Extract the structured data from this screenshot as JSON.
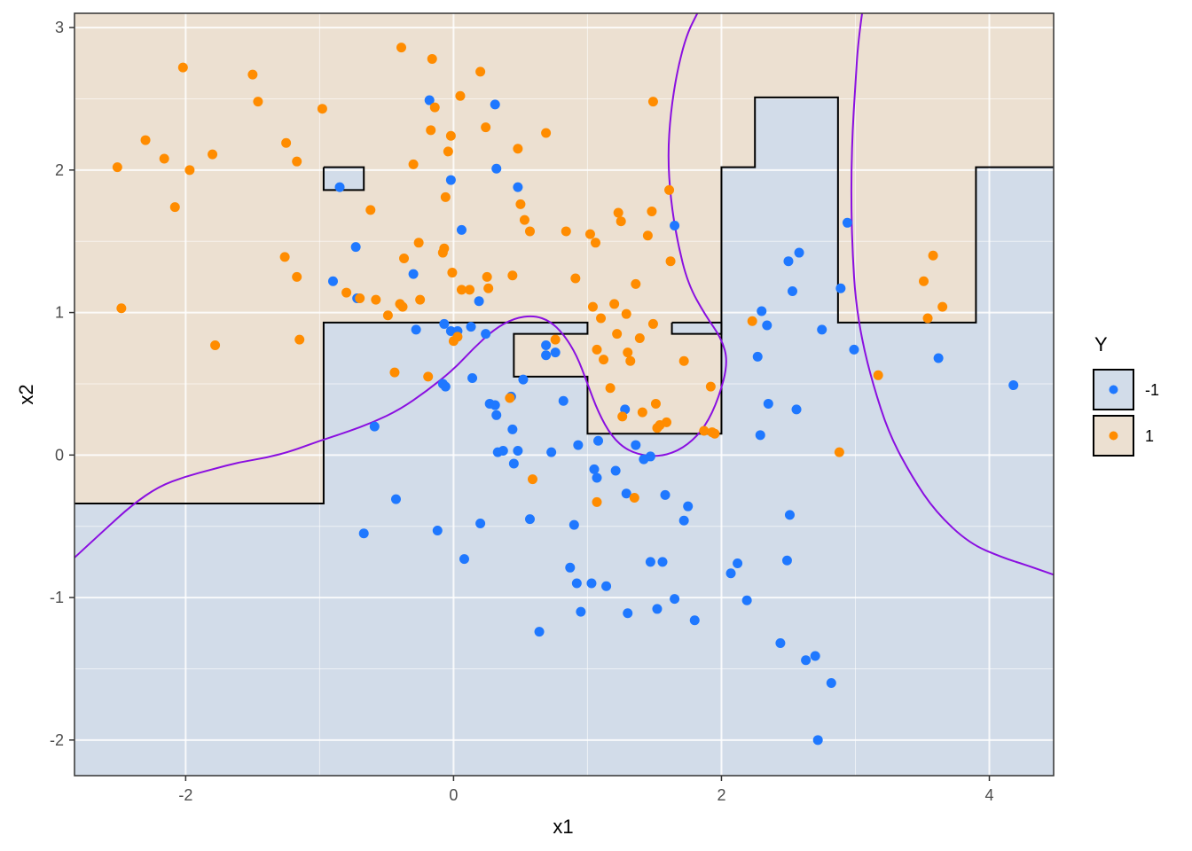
{
  "chart_data": {
    "type": "scatter",
    "xlabel": "x1",
    "ylabel": "x2",
    "xlim": [
      -2.83,
      4.48
    ],
    "ylim": [
      -2.25,
      3.1
    ],
    "x_ticks": [
      -2,
      0,
      2,
      4
    ],
    "y_ticks": [
      -2,
      -1,
      0,
      1,
      2,
      3
    ],
    "x_tick_labels": [
      "-2",
      "0",
      "2",
      "4"
    ],
    "y_tick_labels": [
      "-2",
      "-1",
      "0",
      "1",
      "2",
      "3"
    ],
    "grid": true,
    "legend": {
      "title": "Y",
      "position": "right",
      "items": [
        {
          "label": "-1",
          "point_color": "#1f78ff",
          "fill": "#d2dce9"
        },
        {
          "label": "1",
          "point_color": "#ff8c00",
          "fill": "#ece0d1"
        }
      ]
    },
    "colors": {
      "region_pos": "#ece0d1",
      "region_neg": "#d2dce9",
      "point_neg": "#1f78ff",
      "point_pos": "#ff8c00",
      "boundary_step": "#000000",
      "boundary_smooth": "#8a0fe0",
      "grid_major": "#ffffff"
    },
    "regions_positive": [
      [
        [
          -2.83,
          3.1
        ],
        [
          4.48,
          3.1
        ],
        [
          4.48,
          2.02
        ],
        [
          3.9,
          2.02
        ],
        [
          3.9,
          0.93
        ],
        [
          2.87,
          0.93
        ],
        [
          2.87,
          2.51
        ],
        [
          2.25,
          2.51
        ],
        [
          2.25,
          2.02
        ],
        [
          2.0,
          2.02
        ],
        [
          2.0,
          0.15
        ],
        [
          1.0,
          0.15
        ],
        [
          1.0,
          0.55
        ],
        [
          0.45,
          0.55
        ],
        [
          0.45,
          0.85
        ],
        [
          1.0,
          0.85
        ],
        [
          1.0,
          0.93
        ],
        [
          -0.97,
          0.93
        ],
        [
          -0.97,
          -0.34
        ],
        [
          -2.83,
          -0.34
        ]
      ]
    ],
    "regions_negative": [
      [
        [
          -0.97,
          2.02
        ],
        [
          -0.67,
          2.02
        ],
        [
          -0.67,
          1.86
        ],
        [
          -0.97,
          1.86
        ]
      ],
      [
        [
          1.63,
          0.93
        ],
        [
          2.0,
          0.93
        ],
        [
          2.0,
          0.85
        ],
        [
          1.63,
          0.85
        ]
      ]
    ],
    "step_boundary": [
      [
        [
          -2.83,
          -0.34
        ],
        [
          -0.97,
          -0.34
        ],
        [
          -0.97,
          0.93
        ],
        [
          1.0,
          0.93
        ],
        [
          1.0,
          0.85
        ],
        [
          0.45,
          0.85
        ],
        [
          0.45,
          0.55
        ],
        [
          1.0,
          0.55
        ],
        [
          1.0,
          0.15
        ],
        [
          2.0,
          0.15
        ],
        [
          2.0,
          2.02
        ],
        [
          2.25,
          2.02
        ],
        [
          2.25,
          2.51
        ],
        [
          2.87,
          2.51
        ],
        [
          2.87,
          0.93
        ],
        [
          3.9,
          0.93
        ],
        [
          3.9,
          2.02
        ],
        [
          4.48,
          2.02
        ]
      ],
      [
        [
          -0.97,
          2.02
        ],
        [
          -0.67,
          2.02
        ],
        [
          -0.67,
          1.86
        ],
        [
          -0.97,
          1.86
        ],
        [
          -0.97,
          2.02
        ]
      ],
      [
        [
          1.63,
          0.93
        ],
        [
          2.0,
          0.93
        ],
        [
          2.0,
          0.85
        ],
        [
          1.63,
          0.85
        ],
        [
          1.63,
          0.93
        ]
      ]
    ],
    "smooth_boundary": [
      [
        [
          -2.83,
          -0.72
        ],
        [
          -2.6,
          -0.52
        ],
        [
          -2.4,
          -0.35
        ],
        [
          -2.2,
          -0.22
        ],
        [
          -2.0,
          -0.15
        ],
        [
          -1.8,
          -0.1
        ],
        [
          -1.6,
          -0.05
        ],
        [
          -1.4,
          -0.02
        ],
        [
          -1.2,
          0.03
        ],
        [
          -1.0,
          0.1
        ],
        [
          -0.8,
          0.16
        ],
        [
          -0.6,
          0.23
        ],
        [
          -0.4,
          0.32
        ],
        [
          -0.2,
          0.45
        ],
        [
          0.0,
          0.6
        ],
        [
          0.15,
          0.75
        ],
        [
          0.3,
          0.88
        ],
        [
          0.45,
          0.96
        ],
        [
          0.6,
          0.98
        ],
        [
          0.72,
          0.94
        ],
        [
          0.82,
          0.85
        ],
        [
          0.92,
          0.7
        ],
        [
          1.0,
          0.5
        ],
        [
          1.08,
          0.3
        ],
        [
          1.18,
          0.13
        ],
        [
          1.3,
          0.03
        ],
        [
          1.45,
          -0.01
        ],
        [
          1.6,
          0.0
        ],
        [
          1.75,
          0.07
        ],
        [
          1.88,
          0.2
        ],
        [
          1.98,
          0.4
        ],
        [
          2.05,
          0.65
        ],
        [
          2.0,
          0.82
        ],
        [
          1.88,
          0.98
        ],
        [
          1.75,
          1.2
        ],
        [
          1.67,
          1.5
        ],
        [
          1.62,
          1.8
        ],
        [
          1.6,
          2.1
        ],
        [
          1.62,
          2.4
        ],
        [
          1.67,
          2.7
        ],
        [
          1.74,
          2.95
        ],
        [
          1.82,
          3.1
        ]
      ],
      [
        [
          3.05,
          3.1
        ],
        [
          3.02,
          2.9
        ],
        [
          3.0,
          2.6
        ],
        [
          2.98,
          2.3
        ],
        [
          2.97,
          2.0
        ],
        [
          2.97,
          1.7
        ],
        [
          2.98,
          1.4
        ],
        [
          3.0,
          1.1
        ],
        [
          3.05,
          0.8
        ],
        [
          3.13,
          0.5
        ],
        [
          3.25,
          0.15
        ],
        [
          3.42,
          -0.15
        ],
        [
          3.6,
          -0.4
        ],
        [
          3.85,
          -0.62
        ],
        [
          4.1,
          -0.72
        ],
        [
          4.3,
          -0.78
        ],
        [
          4.48,
          -0.84
        ]
      ]
    ],
    "series": [
      {
        "name": "-1",
        "x": [
          -0.85,
          -0.73,
          -0.9,
          -0.72,
          -0.3,
          -0.28,
          -0.59,
          -0.43,
          -0.67,
          -0.12,
          -0.08,
          -0.06,
          -0.02,
          -0.07,
          -0.18,
          -0.02,
          0.06,
          0.08,
          0.13,
          0.14,
          0.2,
          0.24,
          0.27,
          0.31,
          0.32,
          0.33,
          0.37,
          0.32,
          0.43,
          0.44,
          0.45,
          0.48,
          0.52,
          0.57,
          0.64,
          0.69,
          0.69,
          0.73,
          0.76,
          0.82,
          0.87,
          0.9,
          0.92,
          0.93,
          0.95,
          1.03,
          1.05,
          1.07,
          1.08,
          1.14,
          1.21,
          1.29,
          1.3,
          1.36,
          1.42,
          1.47,
          1.52,
          1.56,
          1.58,
          1.65,
          1.72,
          1.75,
          1.8,
          1.65,
          2.07,
          2.12,
          2.19,
          2.27,
          2.29,
          2.3,
          2.34,
          2.35,
          2.44,
          2.49,
          2.5,
          2.51,
          2.53,
          2.56,
          2.58,
          2.63,
          2.7,
          2.72,
          2.75,
          2.82,
          2.89,
          2.94,
          2.99,
          3.62,
          4.18,
          0.19,
          0.31,
          0.03,
          1.47,
          0.48,
          1.28
        ],
        "y": [
          1.88,
          1.46,
          1.22,
          1.1,
          1.27,
          0.88,
          0.2,
          -0.31,
          -0.55,
          -0.53,
          0.5,
          0.48,
          0.87,
          0.92,
          2.49,
          1.93,
          1.58,
          -0.73,
          0.9,
          0.54,
          -0.48,
          0.85,
          0.36,
          0.35,
          0.28,
          0.02,
          0.03,
          2.01,
          0.41,
          0.18,
          -0.06,
          0.03,
          0.53,
          -0.45,
          -1.24,
          0.7,
          0.77,
          0.02,
          0.72,
          0.38,
          -0.79,
          -0.49,
          -0.9,
          0.07,
          -1.1,
          -0.9,
          -0.1,
          -0.16,
          0.1,
          -0.92,
          -0.11,
          -0.27,
          -1.11,
          0.07,
          -0.03,
          -0.75,
          -1.08,
          -0.75,
          -0.28,
          -1.01,
          -0.46,
          -0.36,
          -1.16,
          1.61,
          -0.83,
          -0.76,
          -1.02,
          0.69,
          0.14,
          1.01,
          0.91,
          0.36,
          -1.32,
          -0.74,
          1.36,
          -0.42,
          1.15,
          0.32,
          1.42,
          -1.44,
          -1.41,
          -2.0,
          0.88,
          -1.6,
          1.17,
          1.63,
          0.74,
          0.68,
          0.49,
          1.08,
          2.46,
          0.87,
          -0.01,
          1.88,
          0.32
        ],
        "color": "#1f78ff"
      },
      {
        "name": "1",
        "x": [
          -2.51,
          -2.48,
          -2.3,
          -2.16,
          -2.08,
          -2.02,
          -1.97,
          -1.78,
          -1.8,
          -1.5,
          -1.46,
          -1.26,
          -1.25,
          -1.17,
          -1.15,
          -1.17,
          -0.98,
          -0.8,
          -0.7,
          -0.62,
          -0.58,
          -0.49,
          -0.44,
          -0.4,
          -0.38,
          -0.37,
          -0.39,
          -0.3,
          -0.26,
          -0.25,
          -0.19,
          -0.17,
          -0.14,
          -0.16,
          -0.07,
          -0.08,
          -0.06,
          -0.04,
          -0.02,
          -0.01,
          0.0,
          0.05,
          0.06,
          0.12,
          0.2,
          0.24,
          0.25,
          0.26,
          0.44,
          0.48,
          0.5,
          0.53,
          0.57,
          0.59,
          0.69,
          0.76,
          0.84,
          0.91,
          1.02,
          1.04,
          1.06,
          1.07,
          1.1,
          1.12,
          1.17,
          1.2,
          1.22,
          1.23,
          1.25,
          1.26,
          1.29,
          1.3,
          1.32,
          1.36,
          1.39,
          1.41,
          1.45,
          1.48,
          1.49,
          1.49,
          1.51,
          1.52,
          1.54,
          1.59,
          1.61,
          1.62,
          1.72,
          1.87,
          1.92,
          1.95,
          2.23,
          2.88,
          3.17,
          3.51,
          3.54,
          3.58,
          3.65,
          0.42,
          0.03,
          1.35,
          1.07,
          1.93
        ],
        "y": [
          2.02,
          1.03,
          2.21,
          2.08,
          1.74,
          2.72,
          2.0,
          0.77,
          2.11,
          2.67,
          2.48,
          1.39,
          2.19,
          1.25,
          0.81,
          2.06,
          2.43,
          1.14,
          1.1,
          1.72,
          1.09,
          0.98,
          0.58,
          1.06,
          1.04,
          1.38,
          2.86,
          2.04,
          1.49,
          1.09,
          0.55,
          2.28,
          2.44,
          2.78,
          1.45,
          1.42,
          1.81,
          2.13,
          2.24,
          1.28,
          0.8,
          2.52,
          1.16,
          1.16,
          2.69,
          2.3,
          1.25,
          1.17,
          1.26,
          2.15,
          1.76,
          1.65,
          1.57,
          -0.17,
          2.26,
          0.81,
          1.57,
          1.24,
          1.55,
          1.04,
          1.49,
          0.74,
          0.96,
          0.67,
          0.47,
          1.06,
          0.85,
          1.7,
          1.64,
          0.27,
          0.99,
          0.72,
          0.66,
          1.2,
          0.82,
          0.3,
          1.54,
          1.71,
          0.92,
          2.48,
          0.36,
          0.19,
          0.21,
          0.23,
          1.86,
          1.36,
          0.66,
          0.17,
          0.48,
          0.15,
          0.94,
          0.02,
          0.56,
          1.22,
          0.96,
          1.4,
          1.04,
          0.4,
          0.83,
          -0.3,
          -0.33,
          0.16
        ],
        "color": "#ff8c00"
      }
    ]
  }
}
